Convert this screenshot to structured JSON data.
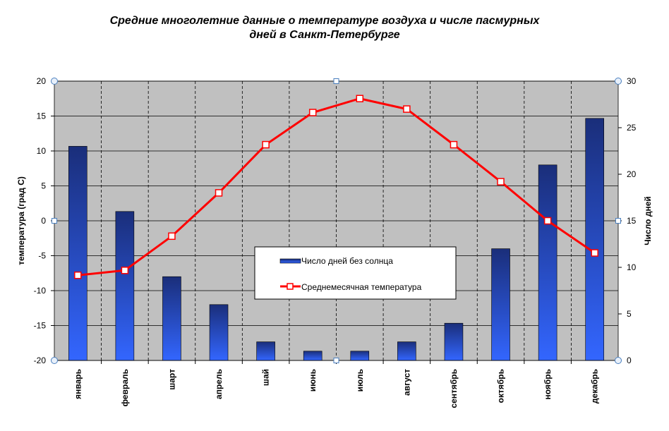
{
  "title_lines": [
    "Средние многолетние данные о температуре воздуха и числе пасмурных",
    "дней в Санкт-Петербурге"
  ],
  "colors": {
    "plot_bg": "#c0c0c0",
    "bar_top": "#1a2e7a",
    "bar_bottom": "#3366ff",
    "line": "#ff0000"
  },
  "chart_data": {
    "type": "bar",
    "categories": [
      "январь",
      "февраль",
      "шарт",
      "апрель",
      "шай",
      "июнь",
      "июль",
      "август",
      "сентябрь",
      "октябрь",
      "ноябрь",
      "декабрь"
    ],
    "ylabel": "температура  (град С)",
    "y2label": "Число дней",
    "ylim": [
      -20,
      20
    ],
    "y2lim": [
      0,
      30
    ],
    "yticks": [
      "20",
      "15",
      "10",
      "5",
      "0",
      "-5",
      "-10",
      "-15",
      "-20"
    ],
    "y2ticks": [
      "30",
      "25",
      "20",
      "15",
      "10",
      "5",
      "0"
    ],
    "grid": true,
    "legend": "center",
    "series": [
      {
        "name": "Число дней без солнца",
        "type": "bar",
        "axis": "right",
        "values": [
          23,
          16,
          9,
          6,
          2,
          1,
          1,
          2,
          4,
          12,
          21,
          26
        ]
      },
      {
        "name": "Среднемесячная температура",
        "type": "line",
        "axis": "left",
        "values": [
          -7.8,
          -7.1,
          -2.2,
          4,
          10.9,
          15.5,
          17.5,
          16,
          10.9,
          5.6,
          0,
          -4.6
        ]
      }
    ]
  }
}
